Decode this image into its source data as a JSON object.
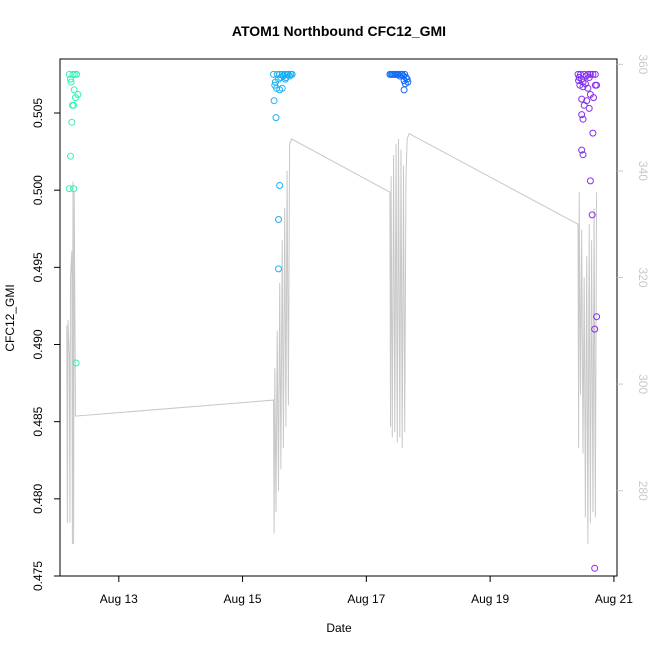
{
  "chart_data": {
    "type": "scatter",
    "title": "ATOM1 Northbound CFC12_GMI",
    "xlabel": "Date",
    "ylabel": "CFC12_GMI",
    "grid": false,
    "x_ticks": [
      {
        "day": 13,
        "label": "Aug 13"
      },
      {
        "day": 15,
        "label": "Aug 15"
      },
      {
        "day": 17,
        "label": "Aug 17"
      },
      {
        "day": 19,
        "label": "Aug 19"
      },
      {
        "day": 21,
        "label": "Aug 21"
      }
    ],
    "xlim_days": [
      12.05,
      21.05
    ],
    "ylim": [
      0.475,
      0.5085
    ],
    "y_ticks": [
      {
        "value": 0.475,
        "label": "0.475"
      },
      {
        "value": 0.48,
        "label": "0.480"
      },
      {
        "value": 0.485,
        "label": "0.485"
      },
      {
        "value": 0.49,
        "label": "0.490"
      },
      {
        "value": 0.495,
        "label": "0.495"
      },
      {
        "value": 0.5,
        "label": "0.500"
      },
      {
        "value": 0.505,
        "label": "0.505"
      }
    ],
    "y2lim": [
      264,
      361
    ],
    "y2_ticks": [
      {
        "value": 280,
        "label": "280"
      },
      {
        "value": 300,
        "label": "300"
      },
      {
        "value": 320,
        "label": "320"
      },
      {
        "value": 340,
        "label": "340"
      },
      {
        "value": 360,
        "label": "360"
      }
    ],
    "colors": {
      "secondary_line": "#c8c8c8",
      "point_colors": [
        "#2ff5b5",
        "#20c4f5",
        "#1060f5",
        "#8a2cf0"
      ],
      "axis": "#000000"
    },
    "series": [
      {
        "type": "scatter",
        "axis": "left",
        "points": [
          {
            "x": 12.2,
            "y": 0.5075
          },
          {
            "x": 12.23,
            "y": 0.507
          },
          {
            "x": 12.26,
            "y": 0.5075
          },
          {
            "x": 12.28,
            "y": 0.5065
          },
          {
            "x": 12.3,
            "y": 0.506
          },
          {
            "x": 12.25,
            "y": 0.5055
          },
          {
            "x": 12.32,
            "y": 0.5075
          },
          {
            "x": 12.22,
            "y": 0.5072
          },
          {
            "x": 12.27,
            "y": 0.5055
          },
          {
            "x": 12.24,
            "y": 0.5044
          },
          {
            "x": 12.22,
            "y": 0.5022
          },
          {
            "x": 12.2,
            "y": 0.5001
          },
          {
            "x": 12.27,
            "y": 0.5001
          },
          {
            "x": 12.31,
            "y": 0.4888
          },
          {
            "x": 12.29,
            "y": 0.5075
          },
          {
            "x": 12.34,
            "y": 0.5062
          },
          {
            "x": 15.5,
            "y": 0.5075
          },
          {
            "x": 15.53,
            "y": 0.507
          },
          {
            "x": 15.56,
            "y": 0.5075
          },
          {
            "x": 15.58,
            "y": 0.5072
          },
          {
            "x": 15.6,
            "y": 0.5075
          },
          {
            "x": 15.62,
            "y": 0.5073
          },
          {
            "x": 15.64,
            "y": 0.5075
          },
          {
            "x": 15.66,
            "y": 0.5074
          },
          {
            "x": 15.68,
            "y": 0.5075
          },
          {
            "x": 15.7,
            "y": 0.5073
          },
          {
            "x": 15.72,
            "y": 0.5075
          },
          {
            "x": 15.74,
            "y": 0.5075
          },
          {
            "x": 15.76,
            "y": 0.5074
          },
          {
            "x": 15.78,
            "y": 0.5075
          },
          {
            "x": 15.8,
            "y": 0.5075
          },
          {
            "x": 15.52,
            "y": 0.5068
          },
          {
            "x": 15.55,
            "y": 0.5066
          },
          {
            "x": 15.6,
            "y": 0.5065
          },
          {
            "x": 15.64,
            "y": 0.5066
          },
          {
            "x": 15.69,
            "y": 0.5072
          },
          {
            "x": 15.51,
            "y": 0.5058
          },
          {
            "x": 15.54,
            "y": 0.5047
          },
          {
            "x": 15.6,
            "y": 0.5003
          },
          {
            "x": 15.58,
            "y": 0.4981
          },
          {
            "x": 15.58,
            "y": 0.4949
          },
          {
            "x": 17.38,
            "y": 0.5075
          },
          {
            "x": 17.4,
            "y": 0.5075
          },
          {
            "x": 17.42,
            "y": 0.5075
          },
          {
            "x": 17.44,
            "y": 0.5075
          },
          {
            "x": 17.46,
            "y": 0.5075
          },
          {
            "x": 17.48,
            "y": 0.5075
          },
          {
            "x": 17.5,
            "y": 0.5075
          },
          {
            "x": 17.52,
            "y": 0.5075
          },
          {
            "x": 17.54,
            "y": 0.5074
          },
          {
            "x": 17.56,
            "y": 0.5075
          },
          {
            "x": 17.58,
            "y": 0.5075
          },
          {
            "x": 17.6,
            "y": 0.5074
          },
          {
            "x": 17.62,
            "y": 0.5075
          },
          {
            "x": 17.64,
            "y": 0.5073
          },
          {
            "x": 17.66,
            "y": 0.5072
          },
          {
            "x": 17.61,
            "y": 0.5071
          },
          {
            "x": 17.67,
            "y": 0.507
          },
          {
            "x": 17.63,
            "y": 0.5069
          },
          {
            "x": 17.61,
            "y": 0.5065
          },
          {
            "x": 20.42,
            "y": 0.5075
          },
          {
            "x": 20.44,
            "y": 0.5073
          },
          {
            "x": 20.46,
            "y": 0.5075
          },
          {
            "x": 20.43,
            "y": 0.5071
          },
          {
            "x": 20.48,
            "y": 0.5072
          },
          {
            "x": 20.5,
            "y": 0.507
          },
          {
            "x": 20.52,
            "y": 0.5075
          },
          {
            "x": 20.55,
            "y": 0.5074
          },
          {
            "x": 20.58,
            "y": 0.5075
          },
          {
            "x": 20.6,
            "y": 0.5073
          },
          {
            "x": 20.62,
            "y": 0.5075
          },
          {
            "x": 20.66,
            "y": 0.5075
          },
          {
            "x": 20.7,
            "y": 0.5075
          },
          {
            "x": 20.45,
            "y": 0.5068
          },
          {
            "x": 20.5,
            "y": 0.5067
          },
          {
            "x": 20.54,
            "y": 0.5069
          },
          {
            "x": 20.58,
            "y": 0.5066
          },
          {
            "x": 20.62,
            "y": 0.5062
          },
          {
            "x": 20.67,
            "y": 0.506
          },
          {
            "x": 20.7,
            "y": 0.5068
          },
          {
            "x": 20.72,
            "y": 0.5068
          },
          {
            "x": 20.48,
            "y": 0.5059
          },
          {
            "x": 20.52,
            "y": 0.5055
          },
          {
            "x": 20.56,
            "y": 0.5058
          },
          {
            "x": 20.6,
            "y": 0.5053
          },
          {
            "x": 20.48,
            "y": 0.5049
          },
          {
            "x": 20.5,
            "y": 0.5046
          },
          {
            "x": 20.66,
            "y": 0.5037
          },
          {
            "x": 20.48,
            "y": 0.5026
          },
          {
            "x": 20.5,
            "y": 0.5023
          },
          {
            "x": 20.62,
            "y": 0.5006
          },
          {
            "x": 20.65,
            "y": 0.4984
          },
          {
            "x": 20.72,
            "y": 0.4918
          },
          {
            "x": 20.69,
            "y": 0.491
          },
          {
            "x": 20.69,
            "y": 0.4755
          }
        ]
      },
      {
        "type": "line",
        "axis": "right",
        "points": [
          {
            "x": 12.16,
            "y": 311
          },
          {
            "x": 12.17,
            "y": 274
          },
          {
            "x": 12.18,
            "y": 312
          },
          {
            "x": 12.2,
            "y": 305
          },
          {
            "x": 12.21,
            "y": 274
          },
          {
            "x": 12.22,
            "y": 320
          },
          {
            "x": 12.24,
            "y": 325
          },
          {
            "x": 12.25,
            "y": 270
          },
          {
            "x": 12.26,
            "y": 338
          },
          {
            "x": 12.27,
            "y": 270
          },
          {
            "x": 12.28,
            "y": 336
          },
          {
            "x": 12.3,
            "y": 294
          },
          {
            "x": 15.5,
            "y": 297
          },
          {
            "x": 15.51,
            "y": 272
          },
          {
            "x": 15.52,
            "y": 303
          },
          {
            "x": 15.54,
            "y": 276
          },
          {
            "x": 15.56,
            "y": 310
          },
          {
            "x": 15.58,
            "y": 280
          },
          {
            "x": 15.6,
            "y": 319
          },
          {
            "x": 15.62,
            "y": 284
          },
          {
            "x": 15.64,
            "y": 327
          },
          {
            "x": 15.66,
            "y": 288
          },
          {
            "x": 15.68,
            "y": 333
          },
          {
            "x": 15.7,
            "y": 292
          },
          {
            "x": 15.72,
            "y": 340
          },
          {
            "x": 15.74,
            "y": 296
          },
          {
            "x": 15.76,
            "y": 345
          },
          {
            "x": 15.79,
            "y": 346
          },
          {
            "x": 17.38,
            "y": 336
          },
          {
            "x": 17.39,
            "y": 292
          },
          {
            "x": 17.4,
            "y": 339
          },
          {
            "x": 17.42,
            "y": 290
          },
          {
            "x": 17.44,
            "y": 343
          },
          {
            "x": 17.46,
            "y": 291
          },
          {
            "x": 17.48,
            "y": 345
          },
          {
            "x": 17.5,
            "y": 289
          },
          {
            "x": 17.52,
            "y": 346
          },
          {
            "x": 17.54,
            "y": 290
          },
          {
            "x": 17.56,
            "y": 344
          },
          {
            "x": 17.58,
            "y": 288
          },
          {
            "x": 17.6,
            "y": 341
          },
          {
            "x": 17.62,
            "y": 291
          },
          {
            "x": 17.64,
            "y": 339
          },
          {
            "x": 17.66,
            "y": 346
          },
          {
            "x": 17.69,
            "y": 347
          },
          {
            "x": 20.42,
            "y": 330
          },
          {
            "x": 20.43,
            "y": 288
          },
          {
            "x": 20.44,
            "y": 336
          },
          {
            "x": 20.46,
            "y": 298
          },
          {
            "x": 20.48,
            "y": 329
          },
          {
            "x": 20.5,
            "y": 287
          },
          {
            "x": 20.52,
            "y": 320
          },
          {
            "x": 20.54,
            "y": 275
          },
          {
            "x": 20.56,
            "y": 324
          },
          {
            "x": 20.58,
            "y": 270
          },
          {
            "x": 20.6,
            "y": 330
          },
          {
            "x": 20.62,
            "y": 274
          },
          {
            "x": 20.64,
            "y": 327
          },
          {
            "x": 20.66,
            "y": 276
          },
          {
            "x": 20.68,
            "y": 333
          },
          {
            "x": 20.7,
            "y": 275
          },
          {
            "x": 20.72,
            "y": 336
          }
        ]
      }
    ]
  }
}
